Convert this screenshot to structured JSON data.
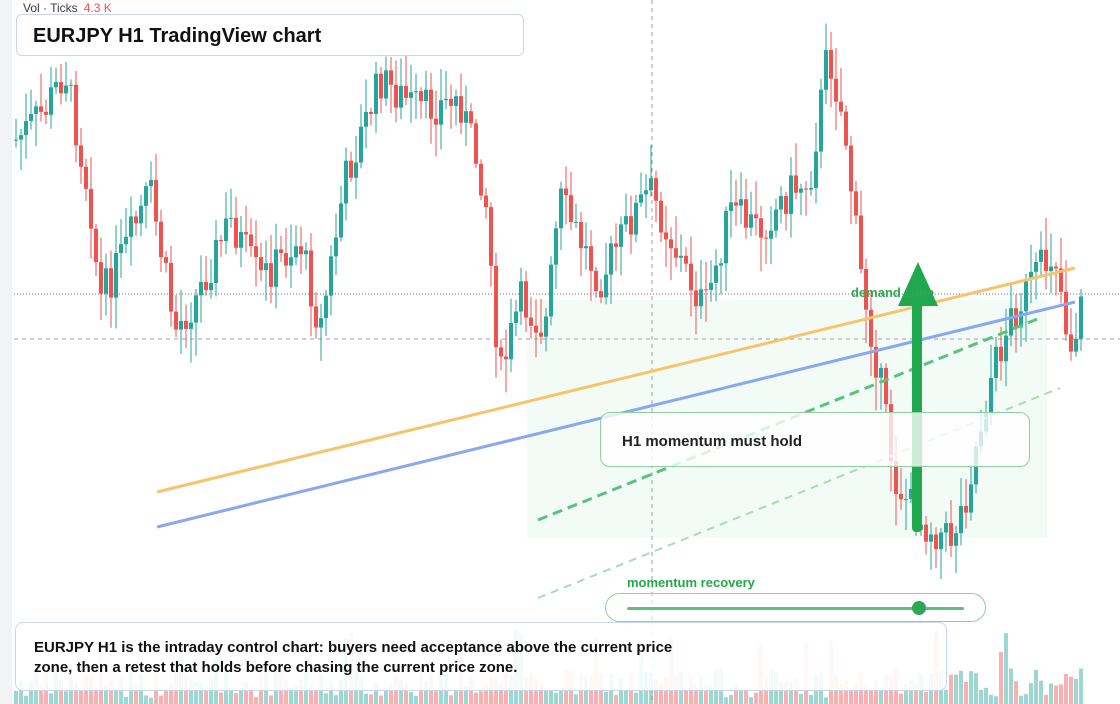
{
  "header": {
    "vol_label": "Vol · Ticks",
    "vol_value": "4.3 K",
    "title": "EURJPY H1 TradingView chart"
  },
  "annotations": {
    "demand_zone_label": "demand zone",
    "callout_text": "H1 momentum must hold",
    "slider_label": "momentum recovery",
    "slider_value": 0.88,
    "note_text": "EURJPY H1 is the intraday control chart: buyers need acceptance above the current price zone, then a retest that holds before chasing the current price zone."
  },
  "colors": {
    "up": "#26a69a",
    "down": "#ef5350",
    "trend_orange": "#f7c36b",
    "trend_blue": "#8aa8ee",
    "zone_green": "#2fa651"
  }
}
